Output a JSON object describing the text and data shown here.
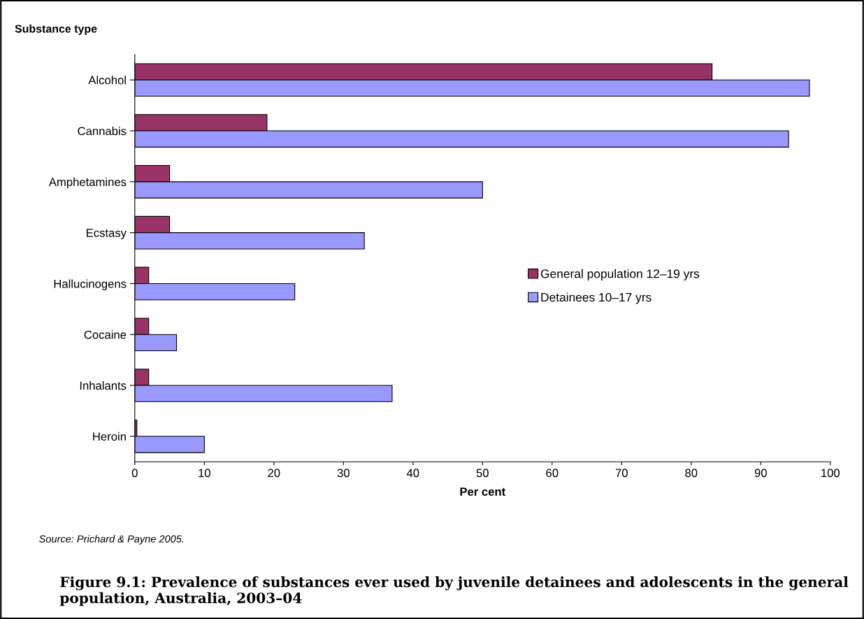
{
  "chart_data": {
    "type": "bar",
    "orientation": "horizontal",
    "title": "Figure 9.1: Prevalence of substances ever used by juvenile detainees and adolescents in the general population, Australia, 2003–04",
    "ylabel": "Substance type",
    "xlabel": "Per cent",
    "categories": [
      "Alcohol",
      "Cannabis",
      "Amphetamines",
      "Ecstasy",
      "Hallucinogens",
      "Cocaine",
      "Inhalants",
      "Heroin"
    ],
    "series": [
      {
        "name": "General population 12–19 yrs",
        "color": "#993366",
        "values": [
          83,
          19,
          5,
          5,
          2,
          2,
          2,
          0.3
        ]
      },
      {
        "name": "Detainees 10–17 yrs",
        "color": "#9999ff",
        "values": [
          97,
          94,
          50,
          33,
          23,
          6,
          37,
          10
        ]
      }
    ],
    "xlim": [
      0,
      100
    ],
    "xticks": [
      0,
      10,
      20,
      30,
      40,
      50,
      60,
      70,
      80,
      90,
      100
    ],
    "legend": "right",
    "grid": false,
    "annotations": [
      "Source: Prichard & Payne 2005."
    ]
  }
}
